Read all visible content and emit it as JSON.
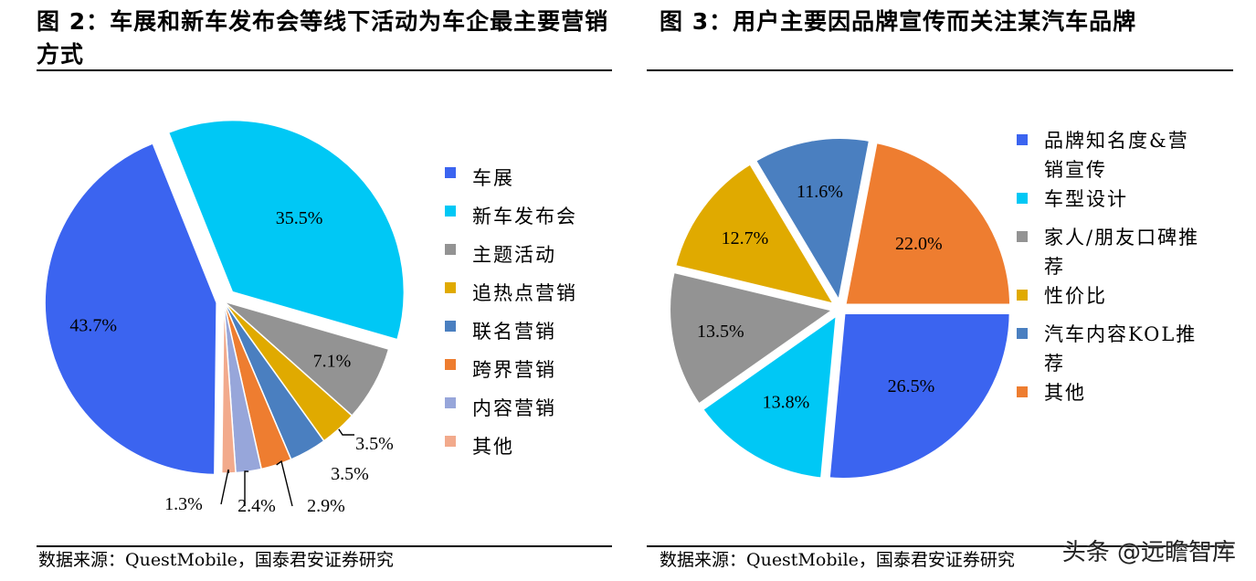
{
  "charts": [
    {
      "title": "图 2：车展和新车发布会等线下活动为车企最主要营销方式",
      "source": "数据来源：QuestMobile，国泰君安证券研究"
    },
    {
      "title": "图 3：用户主要因品牌宣传而关注某汽车品牌",
      "source": "数据来源：QuestMobile，国泰君安证券研究"
    }
  ],
  "chart_data": [
    {
      "type": "pie",
      "title": "图 2：车展和新车发布会等线下活动为车企最主要营销方式",
      "legend_position": "right",
      "slices": [
        {
          "label": "车展",
          "value": 43.7,
          "display": "43.7%",
          "color": "#3b64f0"
        },
        {
          "label": "新车发布会",
          "value": 35.5,
          "display": "35.5%",
          "color": "#00c8f5"
        },
        {
          "label": "主题活动",
          "value": 7.1,
          "display": "7.1%",
          "color": "#939393"
        },
        {
          "label": "追热点营销",
          "value": 3.5,
          "display": "3.5%",
          "color": "#e0aa00"
        },
        {
          "label": "联名营销",
          "value": 3.5,
          "display": "3.5%",
          "color": "#4a7fc0"
        },
        {
          "label": "跨界营销",
          "value": 2.9,
          "display": "2.9%",
          "color": "#ee7d30"
        },
        {
          "label": "内容营销",
          "value": 2.4,
          "display": "2.4%",
          "color": "#97a6da"
        },
        {
          "label": "其他",
          "value": 1.3,
          "display": "1.3%",
          "color": "#f2aa8c"
        }
      ]
    },
    {
      "type": "pie",
      "title": "图 3：用户主要因品牌宣传而关注某汽车品牌",
      "legend_position": "right",
      "slices": [
        {
          "label": "品牌知名度&营销宣传",
          "value": 26.5,
          "display": "26.5%",
          "color": "#3b64f0"
        },
        {
          "label": "车型设计",
          "value": 13.8,
          "display": "13.8%",
          "color": "#00c8f5"
        },
        {
          "label": "家人/朋友口碑推荐",
          "value": 13.5,
          "display": "13.5%",
          "color": "#939393"
        },
        {
          "label": "性价比",
          "value": 12.7,
          "display": "12.7%",
          "color": "#e0aa00"
        },
        {
          "label": "汽车内容KOL推荐",
          "value": 11.6,
          "display": "11.6%",
          "color": "#4a7fc0"
        },
        {
          "label": "其他",
          "value": 22.0,
          "display": "22.0%",
          "color": "#ee7d30"
        }
      ]
    }
  ],
  "watermark": "头条 @远瞻智库"
}
